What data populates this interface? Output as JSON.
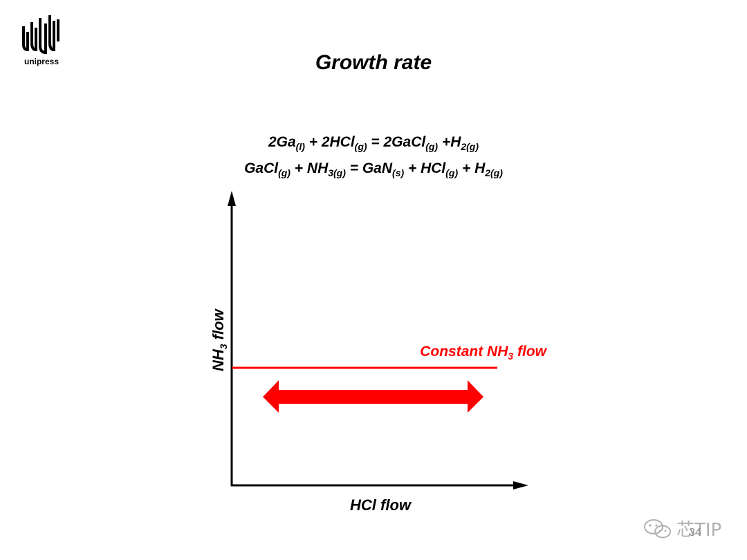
{
  "logo": {
    "text": "unipress",
    "icon": "unipress-logo-icon"
  },
  "title": "Growth rate",
  "equations": {
    "line1": [
      {
        "t": "2Ga"
      },
      {
        "s": "(l)"
      },
      {
        "t": " + 2HCl"
      },
      {
        "s": "(g)"
      },
      {
        "t": " = 2GaCl"
      },
      {
        "s": "(g)"
      },
      {
        "t": " +H"
      },
      {
        "s": "2(g)"
      }
    ],
    "line2": [
      {
        "t": "GaCl"
      },
      {
        "s": "(g)"
      },
      {
        "t": " + NH"
      },
      {
        "s": "3(g)"
      },
      {
        "t": " = GaN"
      },
      {
        "s": "(s)"
      },
      {
        "t": " + HCl"
      },
      {
        "s": "(g)"
      },
      {
        "t": " + H"
      },
      {
        "s": "2(g)"
      }
    ]
  },
  "axes": {
    "y_label_main": "NH",
    "y_label_sub": "3",
    "y_label_tail": " flow",
    "x_label": "HCl flow"
  },
  "constant_line": {
    "label_main": "Constant NH",
    "label_sub": "3",
    "label_tail": " flow",
    "color": "#ff0000"
  },
  "watermark": {
    "text": "芯TIP",
    "icon": "wechat-icon"
  },
  "page_number": "34"
}
